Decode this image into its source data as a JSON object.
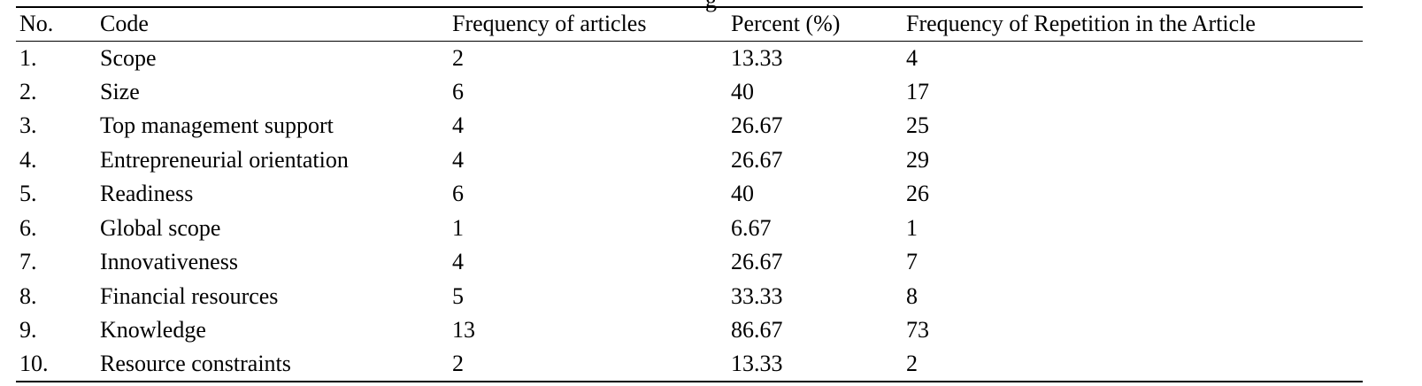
{
  "caption_fragment": "g",
  "table": {
    "headers": [
      "No.",
      "Code",
      "Frequency of articles",
      "Percent (%)",
      "Frequency of Repetition in the Article"
    ],
    "rows": [
      [
        "1.",
        "Scope",
        "2",
        "13.33",
        "4"
      ],
      [
        "2.",
        "Size",
        "6",
        "40",
        "17"
      ],
      [
        "3.",
        "Top management support",
        "4",
        "26.67",
        "25"
      ],
      [
        "4.",
        "Entrepreneurial orientation",
        "4",
        "26.67",
        "29"
      ],
      [
        "5.",
        "Readiness",
        "6",
        "40",
        "26"
      ],
      [
        "6.",
        "Global scope",
        "1",
        "6.67",
        "1"
      ],
      [
        "7.",
        "Innovativeness",
        "4",
        "26.67",
        "7"
      ],
      [
        "8.",
        "Financial resources",
        "5",
        "33.33",
        "8"
      ],
      [
        "9.",
        "Knowledge",
        "13",
        "86.67",
        "73"
      ],
      [
        "10.",
        "Resource constraints",
        "2",
        "13.33",
        "2"
      ]
    ]
  }
}
